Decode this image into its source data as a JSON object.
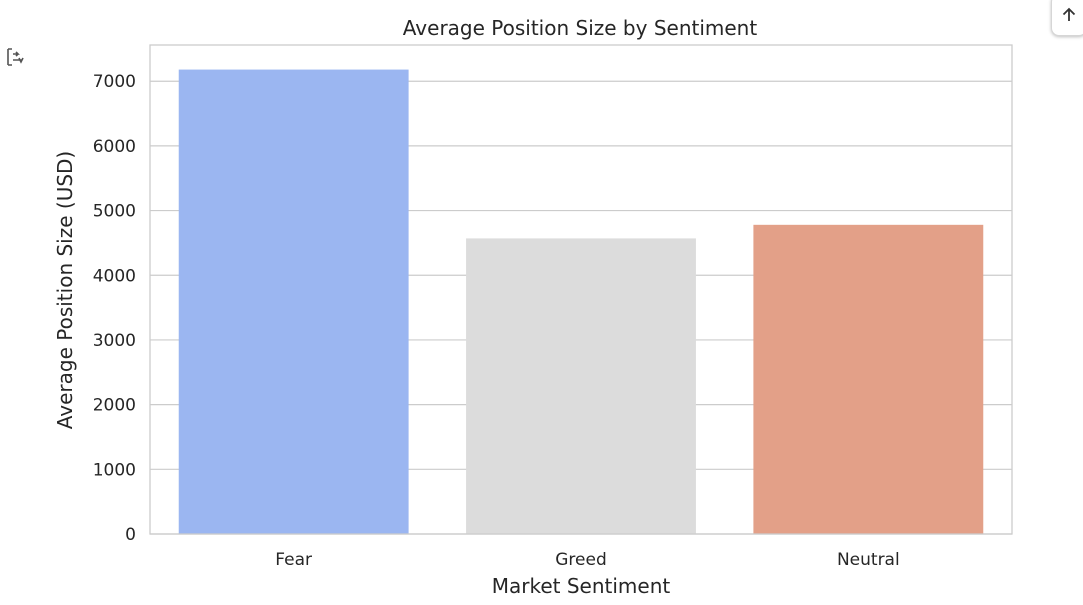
{
  "icons": {
    "output_toggle": "output-toggle-icon",
    "scroll_top": "arrow-up-icon"
  },
  "chart_data": {
    "type": "bar",
    "title": "Average Position Size by Sentiment",
    "xlabel": "Market Sentiment",
    "ylabel": "Average Position Size (USD)",
    "categories": [
      "Fear",
      "Greed",
      "Neutral"
    ],
    "values": [
      7180,
      4570,
      4780
    ],
    "colors": [
      "#9bb6f1",
      "#dcdcdc",
      "#e3a088"
    ],
    "ylim": [
      0,
      7560
    ],
    "yticks": [
      0,
      1000,
      2000,
      3000,
      4000,
      5000,
      6000,
      7000
    ],
    "grid": true,
    "legend": "none"
  }
}
